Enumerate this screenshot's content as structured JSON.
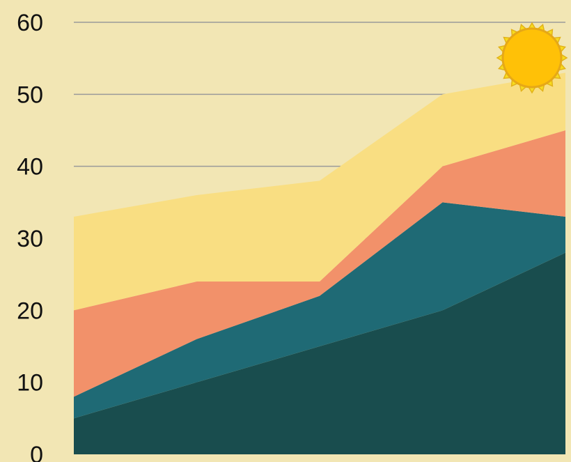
{
  "colors": {
    "background": "#F2E6B4",
    "gridline": "#9A9A9A",
    "series": [
      "#194D4E",
      "#1F6A75",
      "#F2916A",
      "#F9DE82"
    ],
    "sun_fill": "#FFC107",
    "sun_rays": "#F7DC1E",
    "axis_text": "#111111"
  },
  "chart_data": {
    "type": "area",
    "stacked": true,
    "x": [
      1,
      2,
      3,
      4,
      5
    ],
    "series": [
      {
        "values": [
          5,
          10,
          15,
          20,
          28
        ]
      },
      {
        "values": [
          3,
          6,
          7,
          15,
          5
        ]
      },
      {
        "values": [
          12,
          8,
          2,
          5,
          12
        ]
      },
      {
        "values": [
          13,
          12,
          14,
          10,
          8
        ]
      }
    ],
    "ylim": [
      0,
      60
    ],
    "yticks": [
      "0",
      "10",
      "20",
      "30",
      "40",
      "50",
      "60"
    ],
    "grid": true,
    "decoration": "sun-icon"
  }
}
